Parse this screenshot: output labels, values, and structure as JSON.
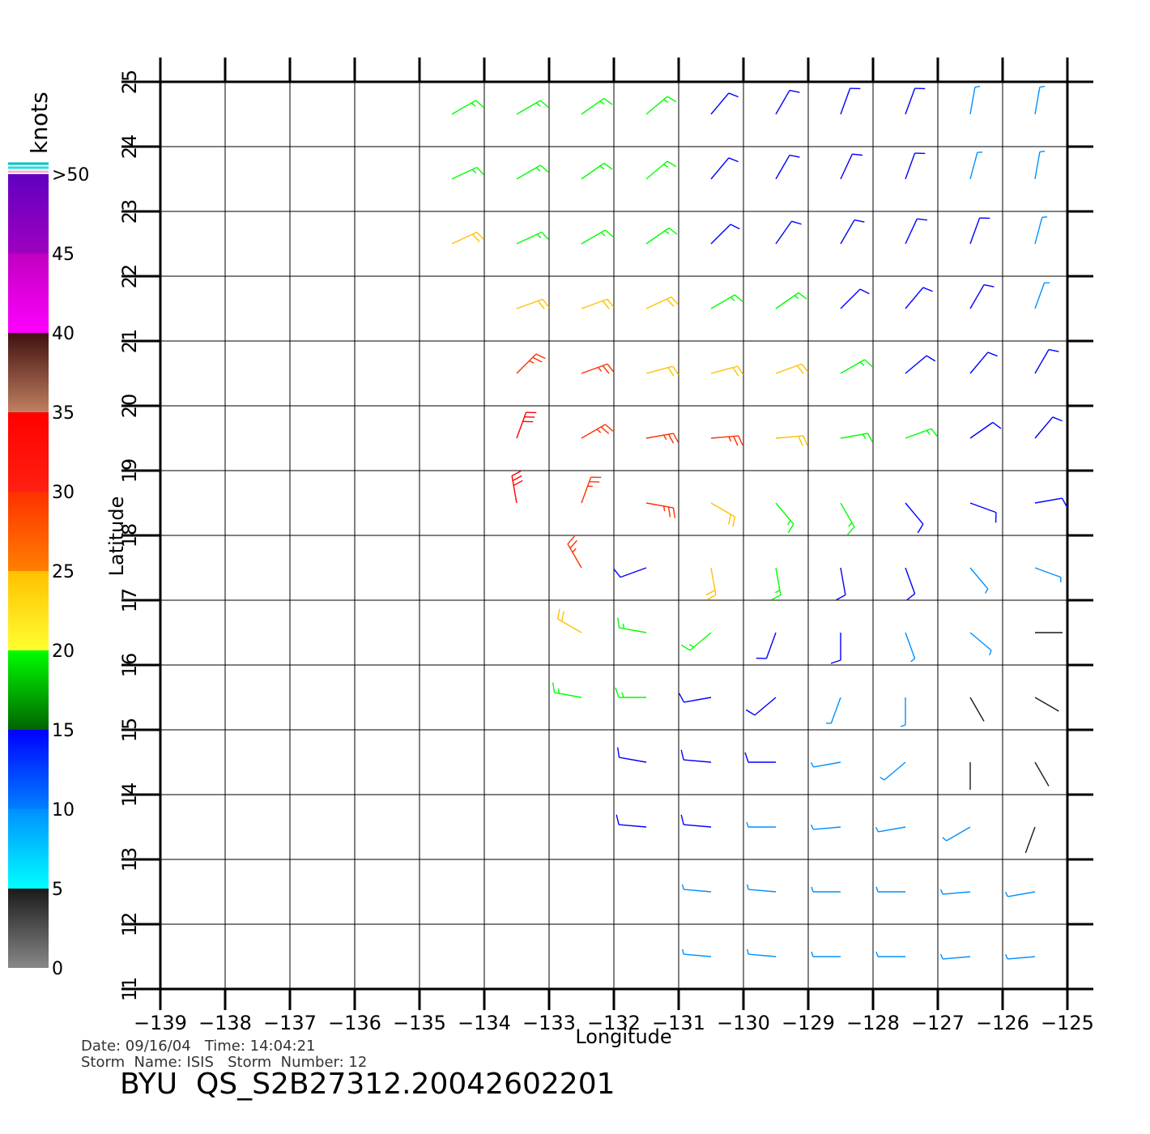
{
  "chart_data": {
    "type": "wind-barbs",
    "xlabel": "Longitude",
    "ylabel": "Latitude",
    "xlim": [
      -139,
      -125
    ],
    "ylim": [
      11,
      25
    ],
    "xticks": [
      {
        "value": -139,
        "label": "−139"
      },
      {
        "value": -138,
        "label": "−138"
      },
      {
        "value": -137,
        "label": "−137"
      },
      {
        "value": -136,
        "label": "−136"
      },
      {
        "value": -135,
        "label": "−135"
      },
      {
        "value": -134,
        "label": "−134"
      },
      {
        "value": -133,
        "label": "−133"
      },
      {
        "value": -132,
        "label": "−132"
      },
      {
        "value": -131,
        "label": "−131"
      },
      {
        "value": -130,
        "label": "−130"
      },
      {
        "value": -129,
        "label": "−129"
      },
      {
        "value": -128,
        "label": "−128"
      },
      {
        "value": -127,
        "label": "−127"
      },
      {
        "value": -126,
        "label": "−126"
      },
      {
        "value": -125,
        "label": "−125"
      }
    ],
    "yticks": [
      11,
      12,
      13,
      14,
      15,
      16,
      17,
      18,
      19,
      20,
      21,
      22,
      23,
      24,
      25
    ],
    "grid": true,
    "colorbar": {
      "unit": "knots",
      "lim": [
        0,
        50
      ],
      "ticks": [
        0,
        5,
        10,
        15,
        20,
        25,
        30,
        35,
        40,
        45,
        {
          "value": 50,
          "label": ">50"
        }
      ],
      "colors": [
        [
          "#888888",
          "#1a1a1a"
        ],
        [
          "#00ffff",
          "#0090ff"
        ],
        [
          "#0080ff",
          "#0000ff"
        ],
        [
          "#006400",
          "#00ff00"
        ],
        [
          "#ffff30",
          "#ffc000"
        ],
        [
          "#ff8000",
          "#ff3000"
        ],
        [
          "#ff2010",
          "#ff0000"
        ],
        [
          "#c08060",
          "#401010"
        ],
        [
          "#ff00ff",
          "#c000c0"
        ],
        [
          "#a000c0",
          "#6000c0"
        ]
      ]
    },
    "rows": [
      {
        "lat": 24.5,
        "lon": [
          -134.5,
          -133.5,
          -132.5,
          -131.5,
          -130.5,
          -129.5,
          -128.5,
          -127.5,
          -126.5,
          -125.5
        ],
        "speed": [
          16,
          16,
          16,
          15,
          13,
          12,
          11,
          10,
          9,
          8
        ],
        "dir": [
          60,
          60,
          55,
          50,
          40,
          30,
          20,
          20,
          10,
          10
        ]
      },
      {
        "lat": 23.5,
        "lon": [
          -134.5,
          -133.5,
          -132.5,
          -131.5,
          -130.5,
          -129.5,
          -128.5,
          -127.5,
          -126.5,
          -125.5
        ],
        "speed": [
          17,
          17,
          16,
          15,
          13,
          12,
          11,
          10,
          9,
          8
        ],
        "dir": [
          65,
          60,
          55,
          50,
          40,
          30,
          25,
          20,
          15,
          10
        ]
      },
      {
        "lat": 22.5,
        "lon": [
          -134.5,
          -133.5,
          -132.5,
          -131.5,
          -130.5,
          -129.5,
          -128.5,
          -127.5,
          -126.5,
          -125.5
        ],
        "speed": [
          20,
          19,
          18,
          16,
          14,
          13,
          12,
          11,
          10,
          8
        ],
        "dir": [
          65,
          65,
          60,
          55,
          45,
          35,
          30,
          25,
          20,
          15
        ]
      },
      {
        "lat": 21.5,
        "lon": [
          -133.5,
          -132.5,
          -131.5,
          -130.5,
          -129.5,
          -128.5,
          -127.5,
          -126.5,
          -125.5
        ],
        "speed": [
          22,
          21,
          20,
          18,
          16,
          14,
          13,
          11,
          9
        ],
        "dir": [
          70,
          70,
          65,
          60,
          55,
          45,
          40,
          30,
          20
        ]
      },
      {
        "lat": 20.5,
        "lon": [
          -133.5,
          -132.5,
          -131.5,
          -130.5,
          -129.5,
          -128.5,
          -127.5,
          -126.5,
          -125.5
        ],
        "speed": [
          27,
          26,
          24,
          22,
          20,
          17,
          14,
          12,
          10
        ],
        "dir": [
          45,
          70,
          75,
          75,
          70,
          60,
          50,
          40,
          30
        ]
      },
      {
        "lat": 19.5,
        "lon": [
          -133.5,
          -132.5,
          -131.5,
          -130.5,
          -129.5,
          -128.5,
          -127.5,
          -126.5,
          -125.5
        ],
        "speed": [
          30,
          28,
          27,
          25,
          22,
          19,
          15,
          12,
          10
        ],
        "dir": [
          20,
          60,
          80,
          85,
          85,
          80,
          70,
          55,
          40
        ]
      },
      {
        "lat": 18.5,
        "lon": [
          -133.5,
          -132.5,
          -131.5,
          -130.5,
          -129.5,
          -128.5,
          -127.5,
          -126.5,
          -125.5
        ],
        "speed": [
          30,
          28,
          26,
          22,
          18,
          15,
          13,
          11,
          10
        ],
        "dir": [
          350,
          20,
          100,
          120,
          140,
          150,
          140,
          110,
          80
        ]
      },
      {
        "lat": 17.5,
        "lon": [
          -132.5,
          -131.5,
          -130.5,
          -129.5,
          -128.5,
          -127.5,
          -126.5,
          -125.5
        ],
        "speed": [
          28,
          12,
          22,
          18,
          14,
          11,
          9,
          8
        ],
        "dir": [
          330,
          250,
          170,
          170,
          170,
          160,
          140,
          110
        ]
      },
      {
        "lat": 16.5,
        "lon": [
          -132.5,
          -131.5,
          -130.5,
          -129.5,
          -128.5,
          -127.5,
          -126.5,
          -125.5
        ],
        "speed": [
          20,
          18,
          17,
          13,
          10,
          8,
          5,
          4
        ],
        "dir": [
          300,
          280,
          230,
          200,
          180,
          160,
          130,
          90
        ]
      },
      {
        "lat": 15.5,
        "lon": [
          -132.5,
          -131.5,
          -130.5,
          -129.5,
          -128.5,
          -127.5,
          -126.5,
          -125.5
        ],
        "speed": [
          16,
          15,
          13,
          11,
          8,
          6,
          4,
          3
        ],
        "dir": [
          280,
          270,
          260,
          230,
          200,
          180,
          150,
          120
        ]
      },
      {
        "lat": 14.5,
        "lon": [
          -131.5,
          -130.5,
          -129.5,
          -128.5,
          -127.5,
          -126.5,
          -125.5
        ],
        "speed": [
          13,
          12,
          11,
          9,
          6,
          4,
          3
        ],
        "dir": [
          280,
          275,
          270,
          260,
          230,
          180,
          150
        ]
      },
      {
        "lat": 13.5,
        "lon": [
          -131.5,
          -130.5,
          -129.5,
          -128.5,
          -127.5,
          -126.5,
          -125.5
        ],
        "speed": [
          11,
          10,
          9,
          8,
          7,
          5,
          4
        ],
        "dir": [
          275,
          275,
          270,
          265,
          260,
          240,
          200
        ]
      },
      {
        "lat": 12.5,
        "lon": [
          -130.5,
          -129.5,
          -128.5,
          -127.5,
          -126.5,
          -125.5
        ],
        "speed": [
          9,
          9,
          8,
          8,
          7,
          6
        ],
        "dir": [
          275,
          275,
          270,
          270,
          265,
          260
        ]
      },
      {
        "lat": 11.5,
        "lon": [
          -130.5,
          -129.5,
          -128.5,
          -127.5,
          -126.5,
          -125.5
        ],
        "speed": [
          8,
          8,
          8,
          7,
          7,
          6
        ],
        "dir": [
          275,
          275,
          270,
          270,
          265,
          265
        ]
      }
    ]
  },
  "footer": {
    "line1": "Date: 09/16/04   Time: 14:04:21",
    "line2": "Storm  Name: ISIS   Storm  Number: 12",
    "product": "BYU  QS_S2B27312.20042602201"
  }
}
